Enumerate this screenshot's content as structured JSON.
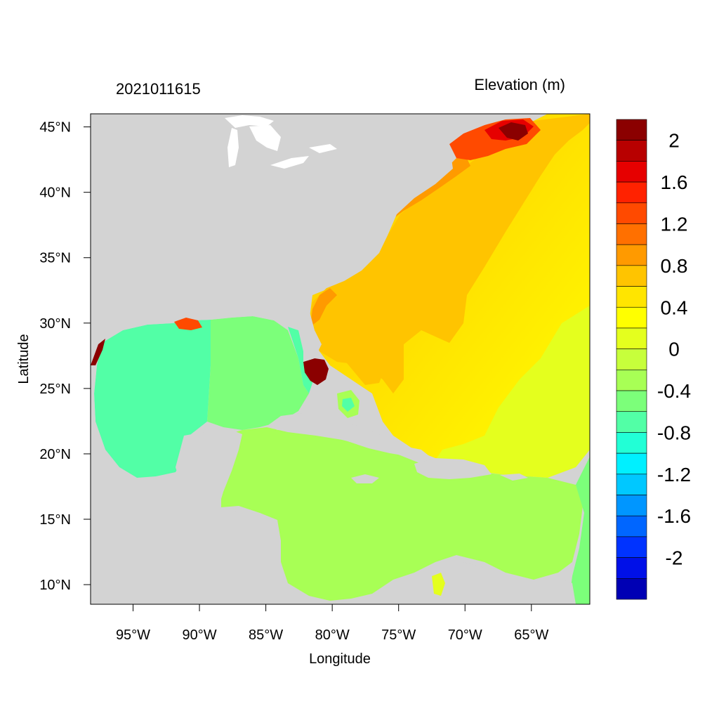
{
  "header": {
    "timestamp": "2021011615",
    "variable": "Elevation (m)"
  },
  "axes": {
    "xlabel": "Longitude",
    "ylabel": "Latitude",
    "x_ticks": [
      "95°W",
      "90°W",
      "85°W",
      "80°W",
      "75°W",
      "70°W",
      "65°W"
    ],
    "x_tick_values": [
      -95,
      -90,
      -85,
      -80,
      -75,
      -70,
      -65
    ],
    "y_ticks": [
      "45°N",
      "40°N",
      "35°N",
      "30°N",
      "25°N",
      "20°N",
      "15°N",
      "10°N"
    ],
    "y_tick_values": [
      45,
      40,
      35,
      30,
      25,
      20,
      15,
      10
    ],
    "xlim": [
      -98.2,
      -60.6
    ],
    "ylim": [
      8.5,
      46
    ]
  },
  "colorbar": {
    "labels": [
      "2",
      "1.6",
      "1.2",
      "0.8",
      "0.4",
      "0",
      "-0.4",
      "-0.8",
      "-1.2",
      "-1.6",
      "-2"
    ],
    "colors": [
      "#8b0000",
      "#b80000",
      "#e60000",
      "#ff2200",
      "#ff4a00",
      "#ff7000",
      "#ff9a00",
      "#ffc400",
      "#ffe500",
      "#ffff00",
      "#e4ff1e",
      "#c7ff3b",
      "#a8ff55",
      "#7cff7a",
      "#52ffa6",
      "#22ffd6",
      "#00f0ff",
      "#00c8ff",
      "#0096ff",
      "#0066ff",
      "#0033ff",
      "#0010e8",
      "#0000b4"
    ]
  },
  "colors": {
    "land": "#d3d3d3",
    "lakes": "#ffffff"
  }
}
